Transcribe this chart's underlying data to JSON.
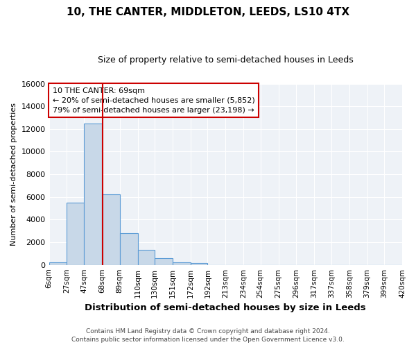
{
  "title": "10, THE CANTER, MIDDLETON, LEEDS, LS10 4TX",
  "subtitle": "Size of property relative to semi-detached houses in Leeds",
  "xlabel": "Distribution of semi-detached houses by size in Leeds",
  "ylabel": "Number of semi-detached properties",
  "bin_edges": [
    6,
    27,
    47,
    68,
    89,
    110,
    130,
    151,
    172,
    192,
    213,
    234,
    254,
    275,
    296,
    317,
    337,
    358,
    379,
    399,
    420
  ],
  "bin_labels": [
    "6sqm",
    "27sqm",
    "47sqm",
    "68sqm",
    "89sqm",
    "110sqm",
    "130sqm",
    "151sqm",
    "172sqm",
    "192sqm",
    "213sqm",
    "234sqm",
    "254sqm",
    "275sqm",
    "296sqm",
    "317sqm",
    "337sqm",
    "358sqm",
    "379sqm",
    "399sqm",
    "420sqm"
  ],
  "counts": [
    250,
    5500,
    12500,
    6200,
    2800,
    1300,
    600,
    200,
    150,
    0,
    0,
    0,
    0,
    0,
    0,
    0,
    0,
    0,
    0,
    0
  ],
  "bar_color": "#c8d8e8",
  "bar_edge_color": "#5b9bd5",
  "property_size": 69,
  "property_line_color": "#cc0000",
  "annotation_title": "10 THE CANTER: 69sqm",
  "annotation_line1": "← 20% of semi-detached houses are smaller (5,852)",
  "annotation_line2": "79% of semi-detached houses are larger (23,198) →",
  "annotation_box_color": "#cc0000",
  "ylim": [
    0,
    16000
  ],
  "yticks": [
    0,
    2000,
    4000,
    6000,
    8000,
    10000,
    12000,
    14000,
    16000
  ],
  "background_color": "#eef2f7",
  "footer_line1": "Contains HM Land Registry data © Crown copyright and database right 2024.",
  "footer_line2": "Contains public sector information licensed under the Open Government Licence v3.0."
}
